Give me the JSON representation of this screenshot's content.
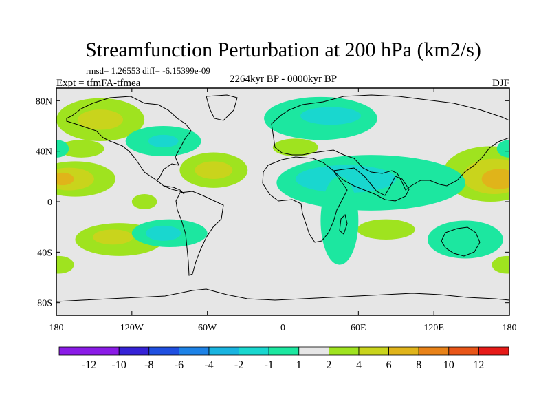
{
  "chart_data": {
    "type": "contour-map",
    "title": "Streamfunction Perturbation at 200 hPa (km2/s)",
    "stats": "rmsd= 1.26553 diff= -6.15399e-09",
    "experiment": "Expt = tfmFA-tfmea",
    "period": "2264kyr BP - 0000kyr BP",
    "season": "DJF",
    "x_ticks": [
      {
        "value": -180,
        "label": "180"
      },
      {
        "value": -120,
        "label": "120W"
      },
      {
        "value": -60,
        "label": "60W"
      },
      {
        "value": 0,
        "label": "0"
      },
      {
        "value": 60,
        "label": "60E"
      },
      {
        "value": 120,
        "label": "120E"
      },
      {
        "value": 180,
        "label": "180"
      }
    ],
    "y_ticks": [
      {
        "value": 80,
        "label": "80N"
      },
      {
        "value": 40,
        "label": "40N"
      },
      {
        "value": 0,
        "label": "0"
      },
      {
        "value": -40,
        "label": "40S"
      },
      {
        "value": -80,
        "label": "80S"
      }
    ],
    "xlim": [
      -180,
      180
    ],
    "ylim": [
      -90,
      90
    ],
    "colorbar": {
      "labels": [
        "-12",
        "-10",
        "-8",
        "-6",
        "-4",
        "-2",
        "-1",
        "1",
        "2",
        "4",
        "6",
        "8",
        "10",
        "12"
      ],
      "colors": [
        "#8a1be6",
        "#3522d6",
        "#1f4fe0",
        "#1d82e6",
        "#19b4e0",
        "#19d7cf",
        "#1ce7a0",
        "#e6e6e6",
        "#9fe31f",
        "#c9d41c",
        "#e0b41a",
        "#e88218",
        "#e85518",
        "#e61a18"
      ]
    },
    "contour_regions": [
      {
        "level": 1,
        "color": "#9fe31f",
        "center": [
          -145,
          65
        ],
        "radius": [
          35,
          17
        ]
      },
      {
        "level": 2,
        "color": "#c9d41c",
        "center": [
          -145,
          65
        ],
        "radius": [
          18,
          8
        ]
      },
      {
        "level": 1,
        "color": "#9fe31f",
        "center": [
          -160,
          42
        ],
        "radius": [
          18,
          7
        ]
      },
      {
        "level": 1,
        "color": "#9fe31f",
        "center": [
          -165,
          18
        ],
        "radius": [
          32,
          14
        ]
      },
      {
        "level": 2,
        "color": "#c9d41c",
        "center": [
          -170,
          18
        ],
        "radius": [
          20,
          9
        ]
      },
      {
        "level": 4,
        "color": "#e0b41a",
        "center": [
          -175,
          18
        ],
        "radius": [
          9,
          5
        ]
      },
      {
        "level": 1,
        "color": "#9fe31f",
        "center": [
          -55,
          25
        ],
        "radius": [
          27,
          14
        ]
      },
      {
        "level": 2,
        "color": "#c9d41c",
        "center": [
          -55,
          25
        ],
        "radius": [
          15,
          7
        ]
      },
      {
        "level": 1,
        "color": "#9fe31f",
        "center": [
          -110,
          0
        ],
        "radius": [
          10,
          6
        ]
      },
      {
        "level": 1,
        "color": "#9fe31f",
        "center": [
          -130,
          -30
        ],
        "radius": [
          35,
          13
        ]
      },
      {
        "level": 2,
        "color": "#c9d41c",
        "center": [
          -135,
          -28
        ],
        "radius": [
          16,
          6
        ]
      },
      {
        "level": 1,
        "color": "#9fe31f",
        "center": [
          10,
          43
        ],
        "radius": [
          18,
          7
        ]
      },
      {
        "level": 1,
        "color": "#9fe31f",
        "center": [
          165,
          22
        ],
        "radius": [
          38,
          22
        ]
      },
      {
        "level": 2,
        "color": "#c9d41c",
        "center": [
          168,
          20
        ],
        "radius": [
          25,
          14
        ]
      },
      {
        "level": 4,
        "color": "#e0b41a",
        "center": [
          172,
          18
        ],
        "radius": [
          14,
          8
        ]
      },
      {
        "level": 1,
        "color": "#9fe31f",
        "center": [
          82,
          -22
        ],
        "radius": [
          23,
          8
        ]
      },
      {
        "level": -1,
        "color": "#1ce7a0",
        "center": [
          -95,
          48
        ],
        "radius": [
          30,
          12
        ]
      },
      {
        "level": -2,
        "color": "#19d7cf",
        "center": [
          -95,
          48
        ],
        "radius": [
          12,
          5
        ]
      },
      {
        "level": -1,
        "color": "#1ce7a0",
        "center": [
          -90,
          -25
        ],
        "radius": [
          30,
          11
        ]
      },
      {
        "level": -2,
        "color": "#19d7cf",
        "center": [
          -95,
          -25
        ],
        "radius": [
          14,
          6
        ]
      },
      {
        "level": -1,
        "color": "#1ce7a0",
        "center": [
          30,
          66
        ],
        "radius": [
          45,
          17
        ]
      },
      {
        "level": -2,
        "color": "#19d7cf",
        "center": [
          38,
          68
        ],
        "radius": [
          24,
          7
        ]
      },
      {
        "level": -1,
        "color": "#1ce7a0",
        "center": [
          70,
          15
        ],
        "radius": [
          75,
          22
        ]
      },
      {
        "level": -2,
        "color": "#19d7cf",
        "center": [
          50,
          18
        ],
        "radius": [
          40,
          11
        ]
      },
      {
        "level": -1,
        "color": "#1ce7a0",
        "center": [
          45,
          -15
        ],
        "radius": [
          15,
          35
        ]
      },
      {
        "level": -1,
        "color": "#1ce7a0",
        "center": [
          145,
          -30
        ],
        "radius": [
          30,
          15
        ]
      },
      {
        "level": -1,
        "color": "#1ce7a0",
        "center": [
          -180,
          42
        ],
        "radius": [
          10,
          7
        ]
      },
      {
        "level": -1,
        "color": "#1ce7a0",
        "center": [
          180,
          42
        ],
        "radius": [
          10,
          7
        ]
      },
      {
        "level": 1,
        "color": "#9fe31f",
        "center": [
          -178,
          -50
        ],
        "radius": [
          12,
          7
        ]
      },
      {
        "level": 1,
        "color": "#9fe31f",
        "center": [
          178,
          -50
        ],
        "radius": [
          12,
          7
        ]
      }
    ]
  }
}
